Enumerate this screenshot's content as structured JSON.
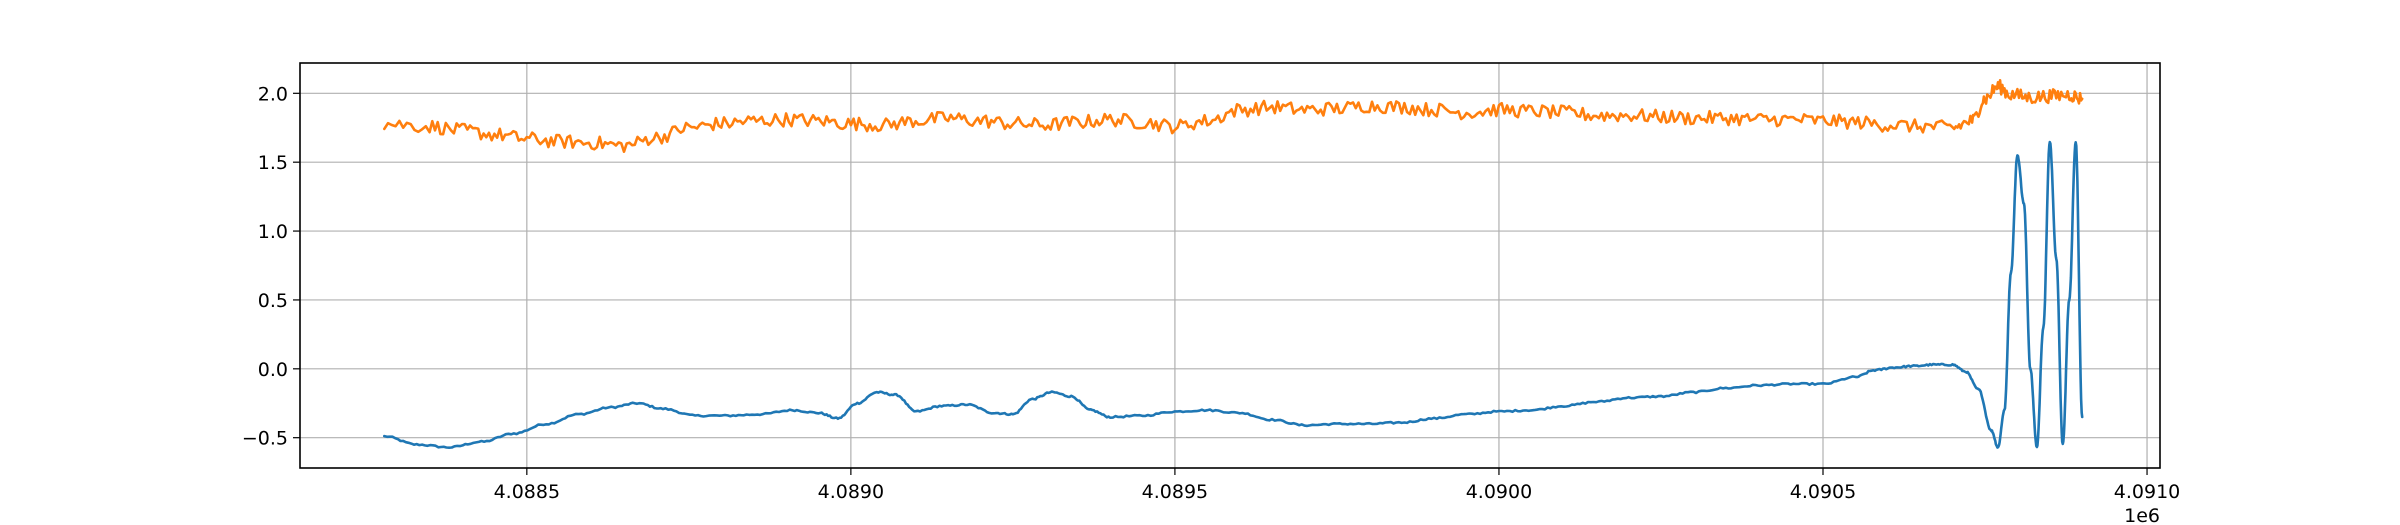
{
  "chart_data": {
    "type": "line",
    "title": "",
    "xlabel": "",
    "ylabel": "",
    "x_offset_label": "1e6",
    "xlim": [
      4.08815,
      4.09102
    ],
    "ylim": [
      -0.72,
      2.22
    ],
    "xticks": [
      4.0885,
      4.089,
      4.0895,
      4.09,
      4.0905,
      4.091
    ],
    "xtick_labels": [
      "4.0885",
      "4.0890",
      "4.0895",
      "4.0900",
      "4.0905",
      "4.0910"
    ],
    "yticks": [
      -0.5,
      0.0,
      0.5,
      1.0,
      1.5,
      2.0
    ],
    "ytick_labels": [
      "−0.5",
      "0.0",
      "0.5",
      "1.0",
      "1.5",
      "2.0"
    ],
    "grid": true,
    "legend": "none",
    "series": [
      {
        "color": "#1f77b4",
        "noise": 0.006,
        "x": [
          4.08828,
          4.08833,
          4.08838,
          4.08843,
          4.08848,
          4.08853,
          4.08858,
          4.08863,
          4.08867,
          4.08871,
          4.08876,
          4.08881,
          4.08886,
          4.08891,
          4.08895,
          4.08898,
          4.08901,
          4.08904,
          4.08907,
          4.0891,
          4.08914,
          4.08918,
          4.08922,
          4.08925,
          4.08928,
          4.08931,
          4.08934,
          4.08937,
          4.0894,
          4.08945,
          4.0895,
          4.08955,
          4.0896,
          4.08965,
          4.0897,
          4.08975,
          4.0898,
          4.08985,
          4.0899,
          4.08995,
          4.09,
          4.09005,
          4.0901,
          4.09015,
          4.0902,
          4.09025,
          4.0903,
          4.09035,
          4.0904,
          4.09045,
          4.0905,
          4.09055,
          4.09058,
          4.09061,
          4.09064,
          4.09067,
          4.0907,
          4.09072,
          4.09074,
          4.09076,
          4.09077,
          4.09078,
          4.09079,
          4.0908,
          4.09081,
          4.09082,
          4.09083,
          4.09084,
          4.09085,
          4.09086,
          4.09087,
          4.09088,
          4.09089,
          4.0909
        ],
        "y": [
          -0.49,
          -0.55,
          -0.57,
          -0.53,
          -0.47,
          -0.4,
          -0.33,
          -0.28,
          -0.25,
          -0.29,
          -0.34,
          -0.34,
          -0.33,
          -0.3,
          -0.32,
          -0.36,
          -0.25,
          -0.17,
          -0.19,
          -0.31,
          -0.27,
          -0.26,
          -0.32,
          -0.33,
          -0.22,
          -0.17,
          -0.2,
          -0.3,
          -0.35,
          -0.34,
          -0.31,
          -0.3,
          -0.32,
          -0.37,
          -0.41,
          -0.4,
          -0.4,
          -0.39,
          -0.36,
          -0.33,
          -0.31,
          -0.3,
          -0.27,
          -0.24,
          -0.21,
          -0.2,
          -0.17,
          -0.14,
          -0.12,
          -0.11,
          -0.11,
          -0.06,
          -0.01,
          0.01,
          0.02,
          0.03,
          0.03,
          -0.02,
          -0.15,
          -0.45,
          -0.57,
          -0.3,
          0.7,
          1.55,
          1.2,
          0.0,
          -0.57,
          0.3,
          1.65,
          0.8,
          -0.55,
          0.5,
          1.65,
          -0.35
        ]
      },
      {
        "color": "#ff7f0e",
        "noise": 0.05,
        "x": [
          4.08828,
          4.08835,
          4.0884,
          4.08845,
          4.0885,
          4.08855,
          4.0886,
          4.08865,
          4.0887,
          4.08875,
          4.0888,
          4.08885,
          4.0889,
          4.08895,
          4.089,
          4.08905,
          4.0891,
          4.08915,
          4.0892,
          4.08925,
          4.0893,
          4.08935,
          4.0894,
          4.08945,
          4.0895,
          4.08955,
          4.0896,
          4.08965,
          4.0897,
          4.08975,
          4.0898,
          4.08985,
          4.0899,
          4.08995,
          4.09,
          4.09005,
          4.0901,
          4.09015,
          4.0902,
          4.09025,
          4.0903,
          4.09035,
          4.0904,
          4.09045,
          4.0905,
          4.09055,
          4.0906,
          4.09065,
          4.0907,
          4.09073,
          4.09075,
          4.09077,
          4.09079,
          4.09082,
          4.09085,
          4.09088,
          4.0909
        ],
        "y": [
          1.78,
          1.76,
          1.73,
          1.7,
          1.67,
          1.65,
          1.64,
          1.62,
          1.68,
          1.75,
          1.78,
          1.8,
          1.81,
          1.8,
          1.78,
          1.77,
          1.8,
          1.82,
          1.8,
          1.78,
          1.77,
          1.79,
          1.81,
          1.79,
          1.76,
          1.8,
          1.88,
          1.9,
          1.88,
          1.89,
          1.91,
          1.9,
          1.88,
          1.86,
          1.88,
          1.87,
          1.86,
          1.84,
          1.84,
          1.83,
          1.82,
          1.82,
          1.81,
          1.81,
          1.8,
          1.79,
          1.77,
          1.76,
          1.75,
          1.8,
          1.96,
          2.05,
          1.99,
          1.97,
          1.98,
          1.99,
          1.96
        ]
      }
    ]
  }
}
